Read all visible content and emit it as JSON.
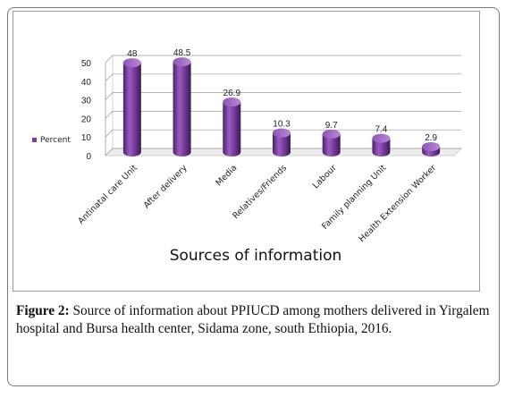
{
  "chart_data": {
    "type": "bar",
    "categories": [
      "Antinatal care Unit",
      "After delivery",
      "Media",
      "Relatives/Friends",
      "Labour",
      "Family planning Unit",
      "Health Extension Worker"
    ],
    "series": [
      {
        "name": "Percent",
        "values": [
          48,
          48.5,
          26.9,
          10.3,
          9.7,
          7.4,
          2.9
        ]
      }
    ],
    "data_labels": [
      "48",
      "48.5",
      "26.9",
      "10.3",
      "9.7",
      "7.4",
      "2.9"
    ],
    "y_ticks": [
      "0",
      "10",
      "20",
      "30",
      "40",
      "50"
    ],
    "xlabel": "Sources of information",
    "ylim": [
      0,
      50
    ],
    "legend_position": "left",
    "grid": true,
    "bar_color": "#7b3fa0"
  },
  "caption": {
    "label": "Figure 2:",
    "text": " Source of information about PPIUCD among mothers delivered in Yirgalem hospital and Bursa health center, Sidama zone, south Ethiopia, 2016."
  }
}
